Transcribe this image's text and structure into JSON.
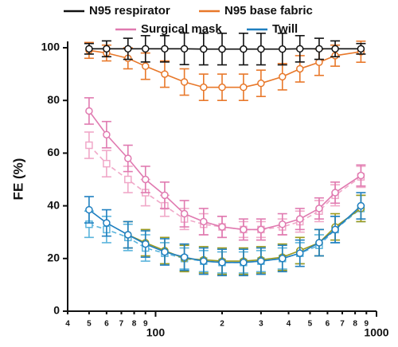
{
  "chart_data": {
    "type": "line",
    "y_label": "FE (%)",
    "xscale": "log",
    "x": [
      50,
      60,
      75,
      90,
      110,
      135,
      165,
      200,
      250,
      300,
      375,
      450,
      550,
      650,
      850
    ],
    "xlim": [
      40,
      1000
    ],
    "xticks": [
      {
        "value": 40,
        "label": "4"
      },
      {
        "value": 50,
        "label": "5"
      },
      {
        "value": 60,
        "label": "6"
      },
      {
        "value": 70,
        "label": "7"
      },
      {
        "value": 80,
        "label": "8"
      },
      {
        "value": 90,
        "label": "9"
      },
      100,
      {
        "value": 200,
        "label": "2"
      },
      {
        "value": 300,
        "label": "3"
      },
      {
        "value": 400,
        "label": "4"
      },
      {
        "value": 500,
        "label": "5"
      },
      {
        "value": 600,
        "label": "6"
      },
      {
        "value": 700,
        "label": "7"
      },
      {
        "value": 800,
        "label": "8"
      },
      {
        "value": 900,
        "label": "9"
      },
      1000
    ],
    "ylim": [
      0,
      100
    ],
    "yticks": [
      0,
      20,
      40,
      60,
      80,
      100
    ],
    "series": [
      {
        "name": "Surgical mask",
        "color": "#f0a8c8",
        "dash": true,
        "marker": "square",
        "values": [
          63,
          56,
          50,
          45,
          40,
          35,
          33,
          32,
          31,
          31,
          32,
          34,
          38,
          44,
          51
        ],
        "errors": [
          5,
          5,
          5,
          5,
          4,
          4,
          4,
          4,
          3,
          3,
          3,
          4,
          4,
          4,
          4
        ]
      },
      {
        "color": "#5ab4dc",
        "dash": true,
        "marker": "square",
        "values": [
          33,
          31,
          28,
          24,
          22,
          20,
          19,
          18.5,
          18.5,
          19,
          20,
          22,
          25,
          31,
          39
        ],
        "errors": [
          5,
          5,
          5,
          5,
          4,
          4,
          4,
          4,
          4,
          4,
          4,
          4,
          4,
          5,
          5
        ]
      },
      {
        "color": "#9c9a1e",
        "dash": false,
        "marker": "circle",
        "values": [
          null,
          null,
          29,
          26,
          23,
          20,
          19.5,
          19,
          19,
          19.5,
          20.5,
          23,
          26,
          32,
          39
        ],
        "errors": [
          null,
          null,
          5,
          5,
          5,
          5,
          5,
          5,
          5,
          5,
          5,
          5,
          5,
          5,
          5
        ]
      },
      {
        "name": "Surgical mask",
        "color": "#e07ab0",
        "dash": false,
        "marker": "circle",
        "values": [
          76,
          67,
          58,
          50,
          44,
          37,
          34,
          32,
          31,
          31,
          33,
          35,
          39,
          45,
          51.5
        ],
        "errors": [
          5,
          5,
          5,
          5,
          5,
          5,
          5,
          4,
          4,
          4,
          4,
          4,
          4,
          4,
          4
        ]
      },
      {
        "name": "Twill",
        "color": "#1f7fc0",
        "dash": false,
        "marker": "circle",
        "values": [
          38.5,
          33.5,
          29,
          25.5,
          22.5,
          20.5,
          19,
          18.5,
          18.5,
          19,
          20,
          22,
          26,
          31,
          40
        ],
        "errors": [
          5,
          5,
          5,
          5,
          5,
          5,
          5,
          5,
          5,
          5,
          5,
          5,
          5,
          5,
          5
        ]
      },
      {
        "name": "N95 base fabric",
        "color": "#e8782a",
        "dash": false,
        "marker": "circle",
        "values": [
          99,
          98,
          96,
          93,
          90,
          87,
          85,
          85,
          85,
          86.5,
          89,
          92,
          94.5,
          97,
          98.5
        ],
        "errors": [
          3,
          3,
          4,
          5,
          5,
          5,
          5,
          5,
          5,
          5,
          5,
          5,
          5,
          4,
          4
        ]
      },
      {
        "name": "N95 respirator",
        "color": "#111111",
        "dash": false,
        "marker": "circle",
        "values": [
          99.6,
          99.6,
          99.6,
          99.6,
          99.6,
          99.6,
          99.5,
          99.5,
          99.5,
          99.5,
          99.5,
          99.6,
          99.6,
          99.6,
          99.6
        ],
        "errors": [
          2,
          3,
          4,
          5,
          5,
          6,
          6,
          6,
          6,
          6,
          6,
          5,
          4,
          3,
          2
        ]
      }
    ]
  }
}
